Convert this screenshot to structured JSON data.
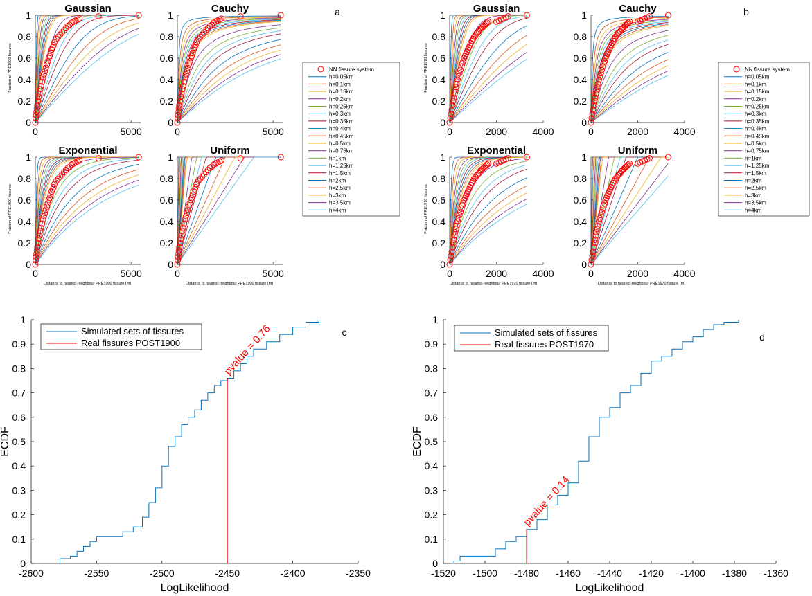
{
  "panel_labels": [
    "a",
    "b",
    "c",
    "d"
  ],
  "small_axes": {
    "a": {
      "ylabel": "Fraction of PRE1900 fissures",
      "xlabel": "Distance to nearest-neighbour PRE1900 fissure  (m)",
      "xticks": [
        "0",
        "5000"
      ],
      "yticks": [
        "0",
        "0.2",
        "0.4",
        "0.6",
        "0.8",
        "1"
      ]
    },
    "b": {
      "ylabel": "Fraction of PRE1970 fissures",
      "xlabel": "Distance to nearest-neighbour PRE1970 fissure  (m)",
      "xticks": [
        "0",
        "2000",
        "4000"
      ],
      "yticks": [
        "0",
        "0.2",
        "0.4",
        "0.6",
        "0.8",
        "1"
      ]
    }
  },
  "legend_small": {
    "nn_label": "NN fissure system",
    "items": [
      "h=0.05km",
      "h=0.1km",
      "h=0.15km",
      "h=0.2km",
      "h=0.25km",
      "h=0.3km",
      "h=0.35km",
      "h=0.4km",
      "h=0.45km",
      "h=0.5km",
      "h=0.75km",
      "h=1km",
      "h=1.25km",
      "h=1.5km",
      "h=2km",
      "h=2.5km",
      "h=3km",
      "h=3.5km",
      "h=4km"
    ],
    "colors": [
      "#0072BD",
      "#D95319",
      "#EDB120",
      "#7E2F8E",
      "#77AC30",
      "#4DBEEE",
      "#A2142F",
      "#0072BD",
      "#D95319",
      "#EDB120",
      "#7E2F8E",
      "#77AC30",
      "#4DBEEE",
      "#A2142F",
      "#0072BD",
      "#D95319",
      "#EDB120",
      "#7E2F8E",
      "#4DBEEE"
    ],
    "h_km": [
      0.05,
      0.1,
      0.15,
      0.2,
      0.25,
      0.3,
      0.35,
      0.4,
      0.45,
      0.5,
      0.75,
      1,
      1.25,
      1.5,
      2,
      2.5,
      3,
      3.5,
      4
    ]
  },
  "colors": {
    "marker": "#FF0000",
    "ecdf_line": "#0072BD",
    "real_line": "#FF0000",
    "annotation": "#FF0000"
  },
  "chart_data": [
    {
      "panel": "a",
      "type": "line",
      "kernel": "Gaussian",
      "title": "Gaussian",
      "xlim": [
        0,
        5500
      ],
      "ylim": [
        0,
        1
      ],
      "series_label": "NN fissure system",
      "markers": {
        "x": [
          0,
          20,
          40,
          60,
          80,
          100,
          140,
          180,
          220,
          260,
          300,
          350,
          400,
          450,
          500,
          550,
          600,
          650,
          700,
          750,
          800,
          850,
          900,
          950,
          1000,
          1100,
          1200,
          1300,
          1400,
          1500,
          1600,
          1700,
          1800,
          1900,
          2000,
          2100,
          2200,
          2300,
          3300,
          5400
        ],
        "y": [
          0,
          0.04,
          0.07,
          0.1,
          0.13,
          0.16,
          0.2,
          0.24,
          0.27,
          0.31,
          0.34,
          0.38,
          0.42,
          0.45,
          0.48,
          0.51,
          0.54,
          0.57,
          0.6,
          0.62,
          0.65,
          0.68,
          0.7,
          0.72,
          0.75,
          0.78,
          0.8,
          0.82,
          0.84,
          0.86,
          0.88,
          0.9,
          0.91,
          0.93,
          0.94,
          0.95,
          0.96,
          0.97,
          0.99,
          1.0
        ]
      }
    },
    {
      "panel": "a",
      "type": "line",
      "kernel": "Cauchy",
      "title": "Cauchy",
      "xlim": [
        0,
        5500
      ],
      "ylim": [
        0,
        1
      ],
      "series_label": "NN fissure system",
      "markers": {
        "x": [
          0,
          20,
          40,
          60,
          80,
          100,
          140,
          180,
          220,
          260,
          300,
          350,
          400,
          450,
          500,
          550,
          600,
          650,
          700,
          750,
          800,
          850,
          900,
          950,
          1000,
          1100,
          1200,
          1300,
          1400,
          1500,
          1600,
          1700,
          1800,
          1900,
          2000,
          2100,
          2200,
          2300,
          3300,
          5400
        ],
        "y": [
          0,
          0.04,
          0.07,
          0.1,
          0.13,
          0.16,
          0.2,
          0.24,
          0.27,
          0.31,
          0.34,
          0.38,
          0.42,
          0.45,
          0.48,
          0.51,
          0.54,
          0.57,
          0.6,
          0.62,
          0.65,
          0.68,
          0.7,
          0.72,
          0.75,
          0.78,
          0.8,
          0.82,
          0.84,
          0.86,
          0.88,
          0.9,
          0.91,
          0.93,
          0.94,
          0.95,
          0.96,
          0.97,
          0.99,
          1.0
        ]
      }
    },
    {
      "panel": "a",
      "type": "line",
      "kernel": "Exponential",
      "title": "Exponential",
      "xlim": [
        0,
        5500
      ],
      "ylim": [
        0,
        1
      ],
      "series_label": "NN fissure system",
      "markers": {
        "x": [
          0,
          20,
          40,
          60,
          80,
          100,
          140,
          180,
          220,
          260,
          300,
          350,
          400,
          450,
          500,
          550,
          600,
          650,
          700,
          750,
          800,
          850,
          900,
          950,
          1000,
          1100,
          1200,
          1300,
          1400,
          1500,
          1600,
          1700,
          1800,
          1900,
          2000,
          2100,
          2200,
          2300,
          3300,
          5400
        ],
        "y": [
          0,
          0.04,
          0.07,
          0.1,
          0.13,
          0.16,
          0.2,
          0.24,
          0.27,
          0.31,
          0.34,
          0.38,
          0.42,
          0.45,
          0.48,
          0.51,
          0.54,
          0.57,
          0.6,
          0.62,
          0.65,
          0.68,
          0.7,
          0.72,
          0.75,
          0.78,
          0.8,
          0.82,
          0.84,
          0.86,
          0.88,
          0.9,
          0.91,
          0.93,
          0.94,
          0.95,
          0.96,
          0.97,
          0.99,
          1.0
        ]
      }
    },
    {
      "panel": "a",
      "type": "line",
      "kernel": "Uniform",
      "title": "Uniform",
      "xlim": [
        0,
        5500
      ],
      "ylim": [
        0,
        1
      ],
      "series_label": "NN fissure system",
      "markers": {
        "x": [
          0,
          20,
          40,
          60,
          80,
          100,
          140,
          180,
          220,
          260,
          300,
          350,
          400,
          450,
          500,
          550,
          600,
          650,
          700,
          750,
          800,
          850,
          900,
          950,
          1000,
          1100,
          1200,
          1300,
          1400,
          1500,
          1600,
          1700,
          1800,
          1900,
          2000,
          2100,
          2200,
          2300,
          3300,
          5400
        ],
        "y": [
          0,
          0.04,
          0.07,
          0.1,
          0.13,
          0.16,
          0.2,
          0.24,
          0.27,
          0.31,
          0.34,
          0.38,
          0.42,
          0.45,
          0.48,
          0.51,
          0.54,
          0.57,
          0.6,
          0.62,
          0.65,
          0.68,
          0.7,
          0.72,
          0.75,
          0.78,
          0.8,
          0.82,
          0.84,
          0.86,
          0.88,
          0.9,
          0.91,
          0.93,
          0.94,
          0.95,
          0.96,
          0.97,
          0.99,
          1.0
        ]
      }
    },
    {
      "panel": "b",
      "type": "line",
      "kernel": "Gaussian",
      "title": "Gaussian",
      "xlim": [
        0,
        4000
      ],
      "ylim": [
        0,
        1
      ],
      "series_label": "NN fissure system",
      "markers": {
        "x": [
          0,
          30,
          60,
          90,
          120,
          150,
          180,
          210,
          240,
          270,
          300,
          340,
          380,
          420,
          460,
          500,
          540,
          580,
          620,
          660,
          700,
          740,
          780,
          820,
          860,
          900,
          950,
          1000,
          1050,
          1100,
          1150,
          1200,
          1250,
          1300,
          1350,
          1400,
          1450,
          1500,
          1550,
          1600,
          1650,
          2000,
          2100,
          2200,
          2300,
          2400,
          2500,
          3300
        ],
        "y": [
          0,
          0.04,
          0.08,
          0.12,
          0.16,
          0.2,
          0.23,
          0.27,
          0.3,
          0.33,
          0.36,
          0.4,
          0.43,
          0.46,
          0.49,
          0.52,
          0.55,
          0.57,
          0.6,
          0.62,
          0.64,
          0.66,
          0.68,
          0.7,
          0.72,
          0.74,
          0.76,
          0.78,
          0.8,
          0.81,
          0.83,
          0.84,
          0.85,
          0.87,
          0.88,
          0.89,
          0.9,
          0.91,
          0.92,
          0.93,
          0.94,
          0.94,
          0.95,
          0.96,
          0.97,
          0.98,
          0.99,
          1.0
        ]
      }
    },
    {
      "panel": "b",
      "type": "line",
      "kernel": "Cauchy",
      "title": "Cauchy",
      "xlim": [
        0,
        4000
      ],
      "ylim": [
        0,
        1
      ],
      "series_label": "NN fissure system",
      "markers": {
        "x": [
          0,
          30,
          60,
          90,
          120,
          150,
          180,
          210,
          240,
          270,
          300,
          340,
          380,
          420,
          460,
          500,
          540,
          580,
          620,
          660,
          700,
          740,
          780,
          820,
          860,
          900,
          950,
          1000,
          1050,
          1100,
          1150,
          1200,
          1250,
          1300,
          1350,
          1400,
          1450,
          1500,
          1550,
          1600,
          1650,
          2000,
          2100,
          2200,
          2300,
          2400,
          2500,
          3300
        ],
        "y": [
          0,
          0.04,
          0.08,
          0.12,
          0.16,
          0.2,
          0.23,
          0.27,
          0.3,
          0.33,
          0.36,
          0.4,
          0.43,
          0.46,
          0.49,
          0.52,
          0.55,
          0.57,
          0.6,
          0.62,
          0.64,
          0.66,
          0.68,
          0.7,
          0.72,
          0.74,
          0.76,
          0.78,
          0.8,
          0.81,
          0.83,
          0.84,
          0.85,
          0.87,
          0.88,
          0.89,
          0.9,
          0.91,
          0.92,
          0.93,
          0.94,
          0.94,
          0.95,
          0.96,
          0.97,
          0.98,
          0.99,
          1.0
        ]
      }
    },
    {
      "panel": "b",
      "type": "line",
      "kernel": "Exponential",
      "title": "Exponential",
      "xlim": [
        0,
        4000
      ],
      "ylim": [
        0,
        1
      ],
      "series_label": "NN fissure system",
      "markers": {
        "x": [
          0,
          30,
          60,
          90,
          120,
          150,
          180,
          210,
          240,
          270,
          300,
          340,
          380,
          420,
          460,
          500,
          540,
          580,
          620,
          660,
          700,
          740,
          780,
          820,
          860,
          900,
          950,
          1000,
          1050,
          1100,
          1150,
          1200,
          1250,
          1300,
          1350,
          1400,
          1450,
          1500,
          1550,
          1600,
          1650,
          2000,
          2100,
          2200,
          2300,
          2400,
          2500,
          3300
        ],
        "y": [
          0,
          0.04,
          0.08,
          0.12,
          0.16,
          0.2,
          0.23,
          0.27,
          0.3,
          0.33,
          0.36,
          0.4,
          0.43,
          0.46,
          0.49,
          0.52,
          0.55,
          0.57,
          0.6,
          0.62,
          0.64,
          0.66,
          0.68,
          0.7,
          0.72,
          0.74,
          0.76,
          0.78,
          0.8,
          0.81,
          0.83,
          0.84,
          0.85,
          0.87,
          0.88,
          0.89,
          0.9,
          0.91,
          0.92,
          0.93,
          0.94,
          0.94,
          0.95,
          0.96,
          0.97,
          0.98,
          0.99,
          1.0
        ]
      }
    },
    {
      "panel": "b",
      "type": "line",
      "kernel": "Uniform",
      "title": "Uniform",
      "xlim": [
        0,
        4000
      ],
      "ylim": [
        0,
        1
      ],
      "series_label": "NN fissure system",
      "markers": {
        "x": [
          0,
          30,
          60,
          90,
          120,
          150,
          180,
          210,
          240,
          270,
          300,
          340,
          380,
          420,
          460,
          500,
          540,
          580,
          620,
          660,
          700,
          740,
          780,
          820,
          860,
          900,
          950,
          1000,
          1050,
          1100,
          1150,
          1200,
          1250,
          1300,
          1350,
          1400,
          1450,
          1500,
          1550,
          1600,
          1650,
          2000,
          2100,
          2200,
          2300,
          2400,
          2500,
          3300
        ],
        "y": [
          0,
          0.04,
          0.08,
          0.12,
          0.16,
          0.2,
          0.23,
          0.27,
          0.3,
          0.33,
          0.36,
          0.4,
          0.43,
          0.46,
          0.49,
          0.52,
          0.55,
          0.57,
          0.6,
          0.62,
          0.64,
          0.66,
          0.68,
          0.7,
          0.72,
          0.74,
          0.76,
          0.78,
          0.8,
          0.81,
          0.83,
          0.84,
          0.85,
          0.87,
          0.88,
          0.89,
          0.9,
          0.91,
          0.92,
          0.93,
          0.94,
          0.94,
          0.95,
          0.96,
          0.97,
          0.98,
          0.99,
          1.0
        ]
      }
    },
    {
      "panel": "c",
      "type": "line",
      "xlabel": "LogLikelihood",
      "ylabel": "ECDF",
      "xlim": [
        -2600,
        -2350
      ],
      "ylim": [
        0,
        1
      ],
      "xticks": [
        "-2600",
        "-2550",
        "-2500",
        "-2450",
        "-2400",
        "-2350"
      ],
      "yticks": [
        "0",
        "0.1",
        "0.2",
        "0.3",
        "0.4",
        "0.5",
        "0.6",
        "0.7",
        "0.8",
        "0.9",
        "1"
      ],
      "legend": [
        "Simulated sets of fissures",
        "Real fissures POST1900"
      ],
      "annotation": "pvalue = 0.76",
      "real_x": -2450,
      "real_y": 0.76,
      "ecdf": {
        "x": [
          -2578,
          -2570,
          -2565,
          -2560,
          -2555,
          -2550,
          -2540,
          -2530,
          -2522,
          -2515,
          -2510,
          -2505,
          -2500,
          -2495,
          -2490,
          -2485,
          -2480,
          -2475,
          -2470,
          -2465,
          -2460,
          -2455,
          -2450,
          -2445,
          -2440,
          -2435,
          -2430,
          -2420,
          -2410,
          -2400,
          -2390,
          -2380
        ],
        "y": [
          0.02,
          0.03,
          0.05,
          0.07,
          0.09,
          0.11,
          0.11,
          0.13,
          0.15,
          0.19,
          0.25,
          0.31,
          0.4,
          0.48,
          0.52,
          0.57,
          0.6,
          0.63,
          0.67,
          0.7,
          0.73,
          0.75,
          0.76,
          0.79,
          0.82,
          0.85,
          0.88,
          0.91,
          0.94,
          0.97,
          0.99,
          1.0
        ]
      }
    },
    {
      "panel": "d",
      "type": "line",
      "xlabel": "LogLikelihood",
      "ylabel": "ECDF",
      "xlim": [
        -1520,
        -1360
      ],
      "ylim": [
        0,
        1
      ],
      "xticks": [
        "-1520",
        "-1500",
        "-1480",
        "-1460",
        "-1440",
        "-1420",
        "-1400",
        "-1380",
        "-1360"
      ],
      "yticks": [
        "0",
        "0.1",
        "0.2",
        "0.3",
        "0.4",
        "0.5",
        "0.6",
        "0.7",
        "0.8",
        "0.9",
        "1"
      ],
      "legend": [
        "Simulated sets of fissures",
        "Real fissures POST1970"
      ],
      "annotation": "pvalue = 0.14",
      "real_x": -1480,
      "real_y": 0.14,
      "ecdf": {
        "x": [
          -1515,
          -1512,
          -1505,
          -1495,
          -1490,
          -1485,
          -1480,
          -1475,
          -1470,
          -1465,
          -1460,
          -1455,
          -1450,
          -1445,
          -1440,
          -1435,
          -1430,
          -1425,
          -1420,
          -1415,
          -1410,
          -1405,
          -1400,
          -1395,
          -1390,
          -1385,
          -1378
        ],
        "y": [
          0.01,
          0.03,
          0.03,
          0.06,
          0.09,
          0.11,
          0.14,
          0.18,
          0.24,
          0.28,
          0.33,
          0.42,
          0.52,
          0.6,
          0.64,
          0.7,
          0.73,
          0.78,
          0.83,
          0.85,
          0.88,
          0.91,
          0.93,
          0.96,
          0.98,
          0.99,
          1.0
        ]
      }
    }
  ]
}
